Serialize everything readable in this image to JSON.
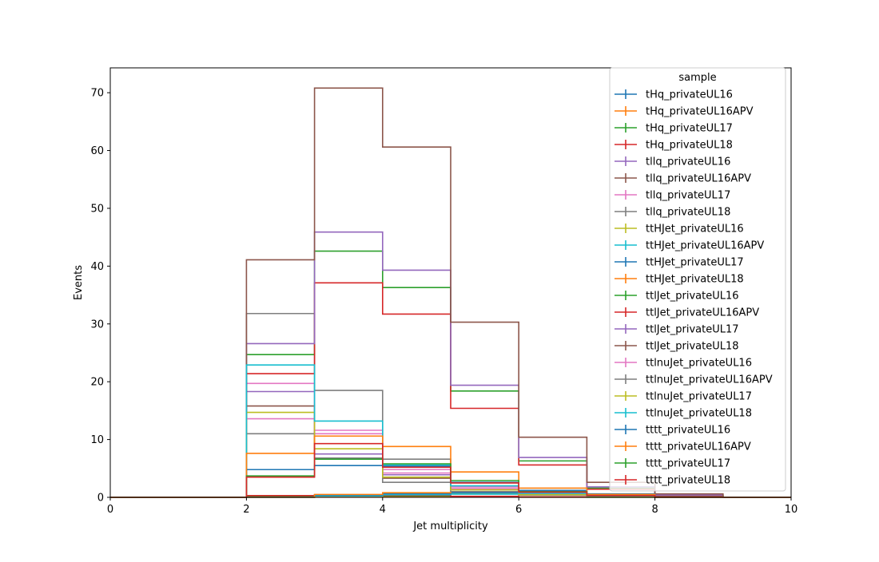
{
  "chart_data": {
    "type": "step-histogram",
    "title": "",
    "xlabel": "Jet multiplicity",
    "ylabel": "Events",
    "xlim": [
      0,
      10
    ],
    "ylim": [
      0,
      74.3
    ],
    "xticks": [
      0,
      2,
      4,
      6,
      8,
      10
    ],
    "yticks": [
      0,
      10,
      20,
      30,
      40,
      50,
      60,
      70
    ],
    "bin_edges": [
      0,
      1,
      2,
      3,
      4,
      5,
      6,
      7,
      8,
      9,
      10
    ],
    "grid": false,
    "legend": {
      "title": "sample",
      "placement": "top-right"
    },
    "series": [
      {
        "name": "tHq_privateUL16",
        "color": "#1f77b4",
        "values": [
          0,
          0,
          0.12,
          0.22,
          0.15,
          0.08,
          0.04,
          0.02,
          0.01,
          0
        ]
      },
      {
        "name": "tHq_privateUL16APV",
        "color": "#ff7f0e",
        "values": [
          0,
          0,
          0.1,
          0.2,
          0.14,
          0.07,
          0.03,
          0.02,
          0.01,
          0
        ]
      },
      {
        "name": "tHq_privateUL17",
        "color": "#2ca02c",
        "values": [
          0,
          0,
          0.18,
          0.33,
          0.25,
          0.12,
          0.06,
          0.03,
          0.01,
          0
        ]
      },
      {
        "name": "tHq_privateUL18",
        "color": "#d62728",
        "values": [
          0,
          0,
          0.3,
          0.45,
          0.35,
          0.18,
          0.08,
          0.04,
          0.02,
          0
        ]
      },
      {
        "name": "tllq_privateUL16",
        "color": "#9467bd",
        "values": [
          0,
          0,
          18.3,
          7.5,
          3.9,
          1.5,
          0.5,
          0.2,
          0.05,
          0
        ]
      },
      {
        "name": "tllq_privateUL16APV",
        "color": "#8c564b",
        "values": [
          0,
          0,
          15.8,
          6.8,
          3.3,
          1.3,
          0.4,
          0.15,
          0.05,
          0
        ]
      },
      {
        "name": "tllq_privateUL17",
        "color": "#e377c2",
        "values": [
          0,
          0,
          19.7,
          11.6,
          4.8,
          1.8,
          0.6,
          0.2,
          0.05,
          0
        ]
      },
      {
        "name": "tllq_privateUL18",
        "color": "#7f7f7f",
        "values": [
          0,
          0,
          31.8,
          18.5,
          6.6,
          2.5,
          0.8,
          0.3,
          0.08,
          0
        ]
      },
      {
        "name": "ttHJet_privateUL16",
        "color": "#bcbd22",
        "values": [
          0,
          0,
          0,
          0.3,
          0.5,
          0.6,
          0.5,
          0.3,
          0.1,
          0
        ]
      },
      {
        "name": "ttHJet_privateUL16APV",
        "color": "#17becf",
        "values": [
          0,
          0,
          0,
          0.25,
          0.45,
          0.55,
          0.45,
          0.25,
          0.08,
          0
        ]
      },
      {
        "name": "ttHJet_privateUL17",
        "color": "#1f77b4",
        "values": [
          0,
          0,
          0,
          0.4,
          0.65,
          0.8,
          0.6,
          0.35,
          0.12,
          0
        ]
      },
      {
        "name": "ttHJet_privateUL18",
        "color": "#ff7f0e",
        "values": [
          0,
          0,
          0,
          0.5,
          0.8,
          1.0,
          0.8,
          0.45,
          0.15,
          0
        ]
      },
      {
        "name": "ttlJet_privateUL16",
        "color": "#2ca02c",
        "values": [
          0,
          0,
          24.7,
          42.6,
          36.3,
          18.4,
          6.3,
          1.6,
          0.4,
          0
        ]
      },
      {
        "name": "ttlJet_privateUL16APV",
        "color": "#d62728",
        "values": [
          0,
          0,
          21.4,
          37.1,
          31.7,
          15.4,
          5.6,
          1.4,
          0.3,
          0
        ]
      },
      {
        "name": "ttlJet_privateUL17",
        "color": "#9467bd",
        "values": [
          0,
          0,
          26.6,
          45.9,
          39.3,
          19.4,
          6.9,
          1.8,
          0.4,
          0
        ]
      },
      {
        "name": "ttlJet_privateUL18",
        "color": "#8c564b",
        "values": [
          0,
          0,
          41.1,
          70.8,
          60.6,
          30.3,
          10.4,
          2.6,
          0.6,
          0
        ]
      },
      {
        "name": "ttlnuJet_privateUL16",
        "color": "#e377c2",
        "values": [
          0,
          0,
          13.6,
          11.0,
          4.2,
          1.5,
          0.5,
          0.2,
          0.05,
          0
        ]
      },
      {
        "name": "ttlnuJet_privateUL16APV",
        "color": "#7f7f7f",
        "values": [
          0,
          0,
          11.0,
          6.8,
          2.6,
          1.0,
          0.4,
          0.15,
          0.05,
          0
        ]
      },
      {
        "name": "ttlnuJet_privateUL17",
        "color": "#bcbd22",
        "values": [
          0,
          0,
          14.7,
          8.4,
          3.5,
          1.3,
          0.45,
          0.2,
          0.05,
          0
        ]
      },
      {
        "name": "ttlnuJet_privateUL18",
        "color": "#17becf",
        "values": [
          0,
          0,
          22.9,
          13.2,
          5.6,
          2.0,
          0.7,
          0.25,
          0.06,
          0
        ]
      },
      {
        "name": "tttt_privateUL16",
        "color": "#1f77b4",
        "values": [
          0,
          0,
          4.8,
          5.5,
          5.4,
          2.6,
          1.2,
          0.6,
          0.15,
          0
        ]
      },
      {
        "name": "tttt_privateUL16APV",
        "color": "#ff7f0e",
        "values": [
          0,
          0,
          7.6,
          10.6,
          8.8,
          4.4,
          1.6,
          0.5,
          0.12,
          0
        ]
      },
      {
        "name": "tttt_privateUL17",
        "color": "#2ca02c",
        "values": [
          0,
          0,
          3.7,
          6.6,
          5.8,
          2.9,
          1.0,
          0.3,
          0.08,
          0
        ]
      },
      {
        "name": "tttt_privateUL18",
        "color": "#d62728",
        "values": [
          0,
          0,
          3.5,
          9.3,
          5.2,
          2.5,
          0.9,
          0.3,
          0.07,
          0
        ]
      }
    ]
  }
}
